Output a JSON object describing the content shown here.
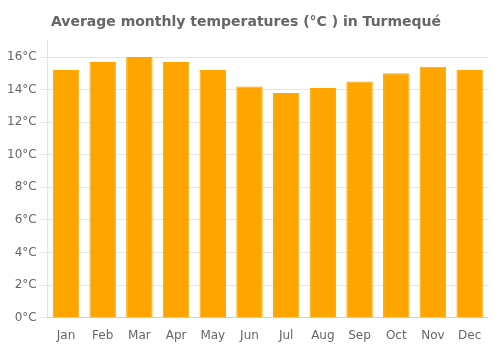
{
  "chart_data": {
    "type": "bar",
    "title": "Average monthly temperatures (°C ) in Turmequé",
    "categories": [
      "Jan",
      "Feb",
      "Mar",
      "Apr",
      "May",
      "Jun",
      "Jul",
      "Aug",
      "Sep",
      "Oct",
      "Nov",
      "Dec"
    ],
    "values": [
      15.2,
      15.7,
      16.0,
      15.7,
      15.2,
      14.2,
      13.8,
      14.1,
      14.5,
      15.0,
      15.4,
      15.2
    ],
    "color": "#FFA500",
    "ylim": [
      0,
      17
    ],
    "yticks": [
      {
        "value": 0,
        "label": "0°C"
      },
      {
        "value": 2,
        "label": "2°C"
      },
      {
        "value": 4,
        "label": "4°C"
      },
      {
        "value": 6,
        "label": "6°C"
      },
      {
        "value": 8,
        "label": "8°C"
      },
      {
        "value": 10,
        "label": "10°C"
      },
      {
        "value": 12,
        "label": "12°C"
      },
      {
        "value": 14,
        "label": "14°C"
      },
      {
        "value": 16,
        "label": "16°C"
      }
    ],
    "grid": true
  }
}
